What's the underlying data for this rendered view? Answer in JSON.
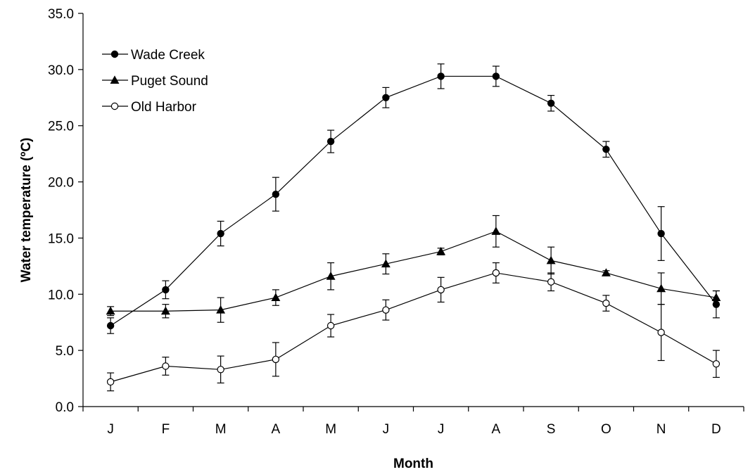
{
  "chart_data": {
    "type": "line",
    "xlabel": "Month",
    "ylabel": "Water temperature (ºC)",
    "categories": [
      "J",
      "F",
      "M",
      "A",
      "M",
      "J",
      "J",
      "A",
      "S",
      "O",
      "N",
      "D"
    ],
    "ylim": [
      0,
      35
    ],
    "yticks": [
      "0.0",
      "5.0",
      "10.0",
      "15.0",
      "20.0",
      "25.0",
      "30.0",
      "35.0"
    ],
    "grid": false,
    "legend_position": "top-left",
    "series": [
      {
        "name": "Wade Creek",
        "marker": "filled-circle",
        "values": [
          7.2,
          10.4,
          15.4,
          18.9,
          23.6,
          27.5,
          29.4,
          29.4,
          27.0,
          22.9,
          15.4,
          9.1
        ],
        "error": [
          0.7,
          0.8,
          1.1,
          1.5,
          1.0,
          0.9,
          1.1,
          0.9,
          0.7,
          0.7,
          2.4,
          1.2
        ]
      },
      {
        "name": "Puget Sound",
        "marker": "filled-triangle",
        "values": [
          8.5,
          8.5,
          8.6,
          9.7,
          11.6,
          12.7,
          13.8,
          15.6,
          13.0,
          11.9,
          10.5,
          9.7
        ],
        "error": [
          0.4,
          0.6,
          1.1,
          0.7,
          1.2,
          0.9,
          0.3,
          1.4,
          1.2,
          0.2,
          1.4,
          0.6
        ]
      },
      {
        "name": "Old Harbor",
        "marker": "open-circle",
        "values": [
          2.2,
          3.6,
          3.3,
          4.2,
          7.2,
          8.6,
          10.4,
          11.9,
          11.1,
          9.2,
          6.6,
          3.8
        ],
        "error": [
          0.8,
          0.8,
          1.2,
          1.5,
          1.0,
          0.9,
          1.1,
          0.9,
          0.8,
          0.7,
          2.5,
          1.2
        ]
      }
    ],
    "colors": {
      "line": "#000000",
      "marker_fill": "#000000",
      "open_fill": "#ffffff"
    }
  }
}
